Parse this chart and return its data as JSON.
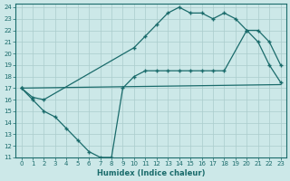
{
  "xlabel": "Humidex (Indice chaleur)",
  "bg_color": "#cce8e8",
  "line_color": "#1a6b6b",
  "grid_color": "#aacccc",
  "xlim": [
    -0.5,
    23.5
  ],
  "ylim": [
    11,
    24.3
  ],
  "xticks": [
    0,
    1,
    2,
    3,
    4,
    5,
    6,
    7,
    8,
    9,
    10,
    11,
    12,
    13,
    14,
    15,
    16,
    17,
    18,
    19,
    20,
    21,
    22,
    23
  ],
  "yticks": [
    11,
    12,
    13,
    14,
    15,
    16,
    17,
    18,
    19,
    20,
    21,
    22,
    23,
    24
  ],
  "line1_x": [
    0,
    1,
    2,
    10,
    11,
    12,
    13,
    14,
    15,
    16,
    17,
    18,
    19,
    20,
    21,
    22,
    23
  ],
  "line1_y": [
    17,
    16.2,
    16.0,
    20.5,
    21.5,
    22.5,
    23.5,
    24.0,
    23.5,
    23.5,
    23.0,
    23.5,
    23.0,
    22.0,
    21.0,
    19.0,
    17.5
  ],
  "line2_x": [
    0,
    23
  ],
  "line2_y": [
    17.0,
    17.3
  ],
  "line3_x": [
    0,
    1,
    2,
    3,
    4,
    5,
    6,
    7,
    8,
    9,
    10,
    11,
    12,
    13,
    14,
    15,
    16,
    17,
    18,
    20,
    21,
    22,
    23
  ],
  "line3_y": [
    17.0,
    16.0,
    15.0,
    14.5,
    13.5,
    12.5,
    11.5,
    11.0,
    11.0,
    17.0,
    18.0,
    18.5,
    18.5,
    18.5,
    18.5,
    18.5,
    18.5,
    18.5,
    18.5,
    22.0,
    22.0,
    21.0,
    19.0
  ]
}
